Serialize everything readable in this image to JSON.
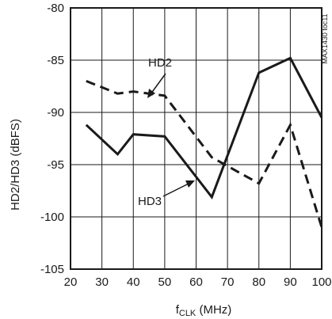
{
  "chart_data": {
    "type": "line",
    "xlabel": "f",
    "xlabel_sub": "CLK",
    "xlabel_unit": " (MHz)",
    "ylabel": "HD2/HD3 (dBFS)",
    "xlim": [
      20,
      100
    ],
    "ylim": [
      -105,
      -80
    ],
    "xticks": [
      20,
      30,
      40,
      50,
      60,
      70,
      80,
      90,
      100
    ],
    "yticks": [
      -80,
      -85,
      -90,
      -95,
      -100,
      -105
    ],
    "grid": true,
    "series": [
      {
        "name": "HD2",
        "style": "dashed",
        "x": [
          25,
          35,
          40,
          50,
          65,
          80,
          90,
          100
        ],
        "y": [
          -87.0,
          -88.2,
          -88.0,
          -88.4,
          -94.3,
          -96.8,
          -91.2,
          -101.0
        ]
      },
      {
        "name": "HD3",
        "style": "solid",
        "x": [
          25,
          35,
          40,
          50,
          65,
          80,
          90,
          100
        ],
        "y": [
          -91.2,
          -94.0,
          -92.1,
          -92.3,
          -98.1,
          -86.2,
          -84.8,
          -90.5
        ]
      }
    ],
    "annotations": [
      {
        "text": "HD2",
        "points_to": "dashed series"
      },
      {
        "text": "HD3",
        "points_to": "solid series"
      }
    ],
    "figure_code": "MAX1430 toc11"
  },
  "colors": {
    "line": "#1a1a1a",
    "grid": "#1a1a1a",
    "background": "#ffffff"
  }
}
